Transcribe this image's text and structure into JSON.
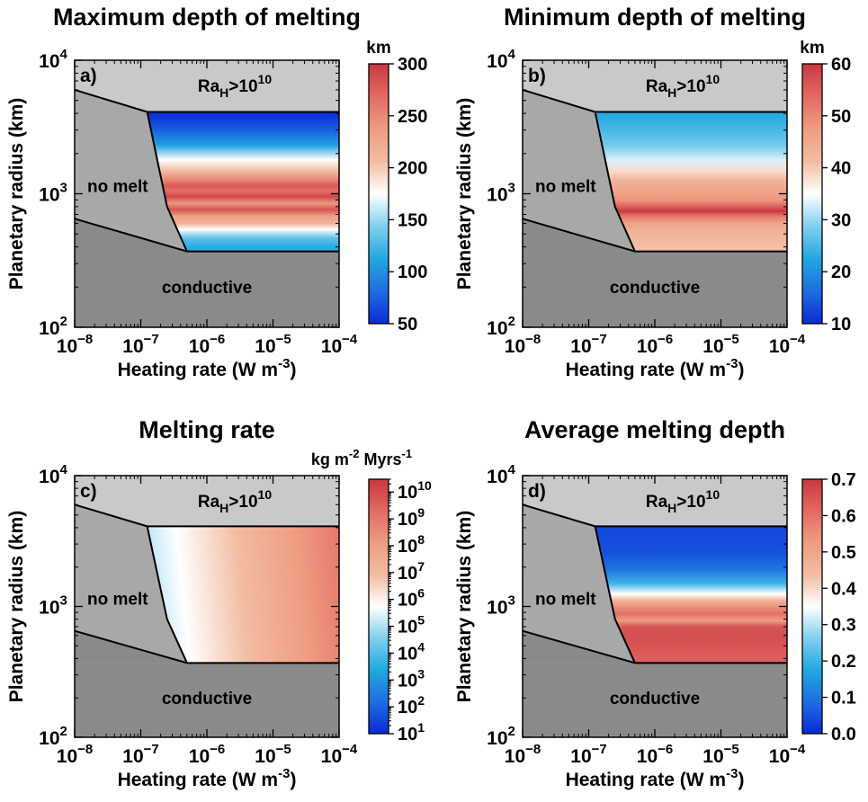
{
  "chart_data": [
    {
      "type": "heatmap",
      "panel_label": "a)",
      "title": "Maximum depth of melting",
      "xlabel": "Heating rate (W m",
      "xlabel_sup": "-3",
      "xlabel_end": ")",
      "ylabel": "Planetary radius (km)",
      "x_scale": "log",
      "y_scale": "log",
      "xlim": [
        1e-08,
        0.0001
      ],
      "ylim": [
        100,
        10000
      ],
      "x_ticks": [
        {
          "base": "10",
          "exp": "−8"
        },
        {
          "base": "10",
          "exp": "−7"
        },
        {
          "base": "10",
          "exp": "−6"
        },
        {
          "base": "10",
          "exp": "−5"
        },
        {
          "base": "10",
          "exp": "−4"
        }
      ],
      "y_ticks": [
        {
          "base": "10",
          "exp": "2"
        },
        {
          "base": "10",
          "exp": "3"
        },
        {
          "base": "10",
          "exp": "4"
        }
      ],
      "regions": {
        "upper": {
          "label_base": "Ra",
          "label_sub": "H",
          "label_mid": ">10",
          "label_sup": "10"
        },
        "nomelt": "no melt",
        "conductive": "conductive"
      },
      "colorbar": {
        "unit": "km",
        "scale": "linear",
        "range": [
          50,
          300
        ],
        "tick_labels": [
          "50",
          "100",
          "150",
          "200",
          "250",
          "300"
        ],
        "tick_values": [
          50,
          100,
          150,
          200,
          250,
          300
        ]
      },
      "bands": [
        {
          "r": 3800,
          "v": 55
        },
        {
          "r": 3000,
          "v": 75
        },
        {
          "r": 2300,
          "v": 110
        },
        {
          "r": 1800,
          "v": 175
        },
        {
          "r": 1500,
          "v": 205
        },
        {
          "r": 1250,
          "v": 255
        },
        {
          "r": 1150,
          "v": 280
        },
        {
          "r": 1050,
          "v": 265
        },
        {
          "r": 950,
          "v": 290
        },
        {
          "r": 850,
          "v": 240
        },
        {
          "r": 760,
          "v": 282
        },
        {
          "r": 680,
          "v": 235
        },
        {
          "r": 600,
          "v": 215
        },
        {
          "r": 540,
          "v": 175
        },
        {
          "r": 470,
          "v": 135
        },
        {
          "r": 400,
          "v": 115
        }
      ]
    },
    {
      "type": "heatmap",
      "panel_label": "b)",
      "title": "Minimum depth of melting",
      "xlabel": "Heating rate (W m",
      "xlabel_sup": "-3",
      "xlabel_end": ")",
      "ylabel": "Planetary radius (km)",
      "x_scale": "log",
      "y_scale": "log",
      "xlim": [
        1e-08,
        0.0001
      ],
      "ylim": [
        100,
        10000
      ],
      "x_ticks": [
        {
          "base": "10",
          "exp": "−8"
        },
        {
          "base": "10",
          "exp": "−7"
        },
        {
          "base": "10",
          "exp": "−6"
        },
        {
          "base": "10",
          "exp": "−5"
        },
        {
          "base": "10",
          "exp": "−4"
        }
      ],
      "y_ticks": [
        {
          "base": "10",
          "exp": "2"
        },
        {
          "base": "10",
          "exp": "3"
        },
        {
          "base": "10",
          "exp": "4"
        }
      ],
      "regions": {
        "upper": {
          "label_base": "Ra",
          "label_sub": "H",
          "label_mid": ">10",
          "label_sup": "10"
        },
        "nomelt": "no melt",
        "conductive": "conductive"
      },
      "colorbar": {
        "unit": "km",
        "scale": "linear",
        "range": [
          10,
          60
        ],
        "tick_labels": [
          "10",
          "20",
          "30",
          "40",
          "50",
          "60"
        ],
        "tick_values": [
          10,
          20,
          30,
          40,
          50,
          60
        ]
      },
      "bands": [
        {
          "r": 3800,
          "v": 23
        },
        {
          "r": 3000,
          "v": 25
        },
        {
          "r": 2300,
          "v": 28
        },
        {
          "r": 1800,
          "v": 33
        },
        {
          "r": 1500,
          "v": 38
        },
        {
          "r": 1250,
          "v": 43
        },
        {
          "r": 1050,
          "v": 46
        },
        {
          "r": 900,
          "v": 48
        },
        {
          "r": 800,
          "v": 55
        },
        {
          "r": 740,
          "v": 60
        },
        {
          "r": 680,
          "v": 52
        },
        {
          "r": 600,
          "v": 46
        },
        {
          "r": 520,
          "v": 43
        },
        {
          "r": 450,
          "v": 42
        },
        {
          "r": 400,
          "v": 41
        }
      ]
    },
    {
      "type": "heatmap",
      "panel_label": "c)",
      "title": "Melting rate",
      "xlabel": "Heating rate (W m",
      "xlabel_sup": "-3",
      "xlabel_end": ")",
      "ylabel": "Planetary radius (km)",
      "x_scale": "log",
      "y_scale": "log",
      "xlim": [
        1e-08,
        0.0001
      ],
      "ylim": [
        100,
        10000
      ],
      "x_ticks": [
        {
          "base": "10",
          "exp": "−8"
        },
        {
          "base": "10",
          "exp": "−7"
        },
        {
          "base": "10",
          "exp": "−6"
        },
        {
          "base": "10",
          "exp": "−5"
        },
        {
          "base": "10",
          "exp": "−4"
        }
      ],
      "y_ticks": [
        {
          "base": "10",
          "exp": "2"
        },
        {
          "base": "10",
          "exp": "3"
        },
        {
          "base": "10",
          "exp": "4"
        }
      ],
      "regions": {
        "upper": {
          "label_base": "Ra",
          "label_sub": "H",
          "label_mid": ">10",
          "label_sup": "10"
        },
        "nomelt": "no melt",
        "conductive": "conductive"
      },
      "colorbar": {
        "unit_parts": [
          "kg m",
          "-2",
          " Myrs",
          "-1"
        ],
        "scale": "log",
        "range": [
          10,
          30000000000
        ],
        "tick_labels": [
          {
            "base": "10",
            "exp": "1"
          },
          {
            "base": "10",
            "exp": "2"
          },
          {
            "base": "10",
            "exp": "3"
          },
          {
            "base": "10",
            "exp": "4"
          },
          {
            "base": "10",
            "exp": "5"
          },
          {
            "base": "10",
            "exp": "6"
          },
          {
            "base": "10",
            "exp": "7"
          },
          {
            "base": "10",
            "exp": "8"
          },
          {
            "base": "10",
            "exp": "9"
          },
          {
            "base": "10",
            "exp": "10"
          }
        ],
        "tick_values": [
          10,
          100,
          1000,
          10000,
          100000,
          1000000,
          10000000,
          100000000,
          1000000000,
          10000000000
        ]
      },
      "field": {
        "log10_rate_at_low_q": 5.0,
        "log10_rate_at_high_q": 8.8,
        "radius_factor": 0.25
      }
    },
    {
      "type": "heatmap",
      "panel_label": "d)",
      "title": "Average melting depth",
      "xlabel": "Heating rate (W m",
      "xlabel_sup": "-3",
      "xlabel_end": ")",
      "ylabel": "Planetary radius (km)",
      "x_scale": "log",
      "y_scale": "log",
      "xlim": [
        1e-08,
        0.0001
      ],
      "ylim": [
        100,
        10000
      ],
      "x_ticks": [
        {
          "base": "10",
          "exp": "−8"
        },
        {
          "base": "10",
          "exp": "−7"
        },
        {
          "base": "10",
          "exp": "−6"
        },
        {
          "base": "10",
          "exp": "−5"
        },
        {
          "base": "10",
          "exp": "−4"
        }
      ],
      "y_ticks": [
        {
          "base": "10",
          "exp": "2"
        },
        {
          "base": "10",
          "exp": "3"
        },
        {
          "base": "10",
          "exp": "4"
        }
      ],
      "regions": {
        "upper": {
          "label_base": "Ra",
          "label_sub": "H",
          "label_mid": ">10",
          "label_sup": "10"
        },
        "nomelt": "no melt",
        "conductive": "conductive"
      },
      "colorbar": {
        "unit": "",
        "scale": "linear",
        "range": [
          0,
          0.7
        ],
        "tick_labels": [
          "0.0",
          "0.1",
          "0.2",
          "0.3",
          "0.4",
          "0.5",
          "0.6",
          "0.7"
        ],
        "tick_values": [
          0,
          0.1,
          0.2,
          0.3,
          0.4,
          0.5,
          0.6,
          0.7
        ]
      },
      "bands": [
        {
          "r": 3800,
          "v": 0.04
        },
        {
          "r": 2600,
          "v": 0.05
        },
        {
          "r": 1900,
          "v": 0.1
        },
        {
          "r": 1500,
          "v": 0.2
        },
        {
          "r": 1250,
          "v": 0.35
        },
        {
          "r": 1100,
          "v": 0.47
        },
        {
          "r": 980,
          "v": 0.55
        },
        {
          "r": 880,
          "v": 0.6
        },
        {
          "r": 780,
          "v": 0.52
        },
        {
          "r": 700,
          "v": 0.65
        },
        {
          "r": 600,
          "v": 0.66
        },
        {
          "r": 500,
          "v": 0.65
        },
        {
          "r": 400,
          "v": 0.63
        }
      ]
    }
  ],
  "boundaries": {
    "upper_left_r": 6000,
    "upper_corner_q": 1.25e-07,
    "upper_corner_r": 4100,
    "lower_left_r": 650,
    "lower_corner_q": 5e-07,
    "lower_corner_r": 370,
    "kink_q": 2.5e-07,
    "kink_r": 800
  },
  "colors": {
    "upper_region": "#c9c9c9",
    "nomelt_region": "#a8a8a8",
    "conductive_region": "#8a8a8a",
    "cmap": [
      "#0a2ad6",
      "#1e6ee0",
      "#22a7e0",
      "#7fd0ee",
      "#ffffff",
      "#f2bca1",
      "#ef9c82",
      "#e26a63",
      "#c8383f"
    ]
  }
}
